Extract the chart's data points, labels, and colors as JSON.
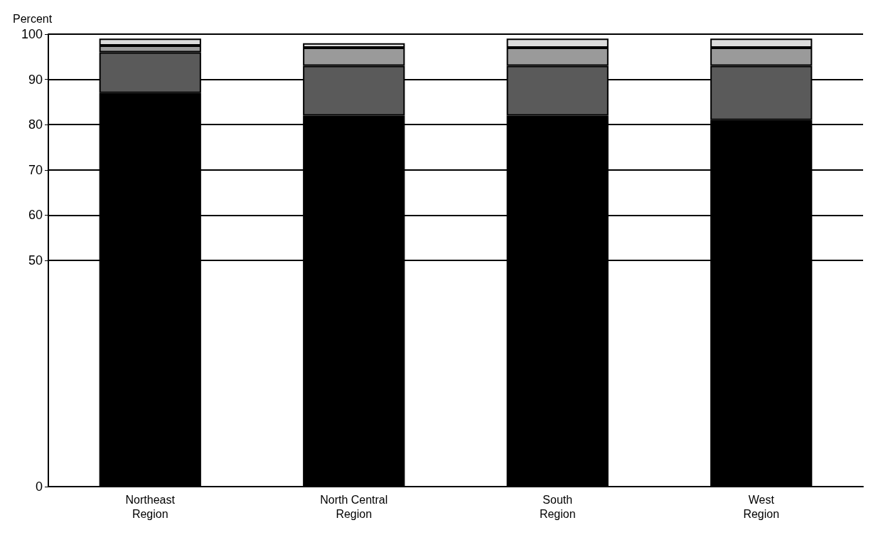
{
  "chart_data": {
    "type": "bar",
    "stacked": true,
    "ylabel": "Percent",
    "categories": [
      "Northeast\nRegion",
      "North Central\nRegion",
      "South\nRegion",
      "West\nRegion"
    ],
    "series": [
      {
        "color": "#000000",
        "values": [
          87,
          82,
          82,
          81
        ]
      },
      {
        "color": "#5a5a5a",
        "values": [
          9,
          11,
          11,
          12
        ]
      },
      {
        "color": "#9a9a9a",
        "values": [
          1.5,
          4,
          4,
          4
        ]
      },
      {
        "color": "#dcdcdc",
        "values": [
          1.5,
          1,
          2,
          2
        ]
      }
    ],
    "ylim": [
      0,
      100
    ],
    "yticks": [
      0,
      50,
      60,
      70,
      80,
      90,
      100
    ],
    "grid": "y"
  }
}
